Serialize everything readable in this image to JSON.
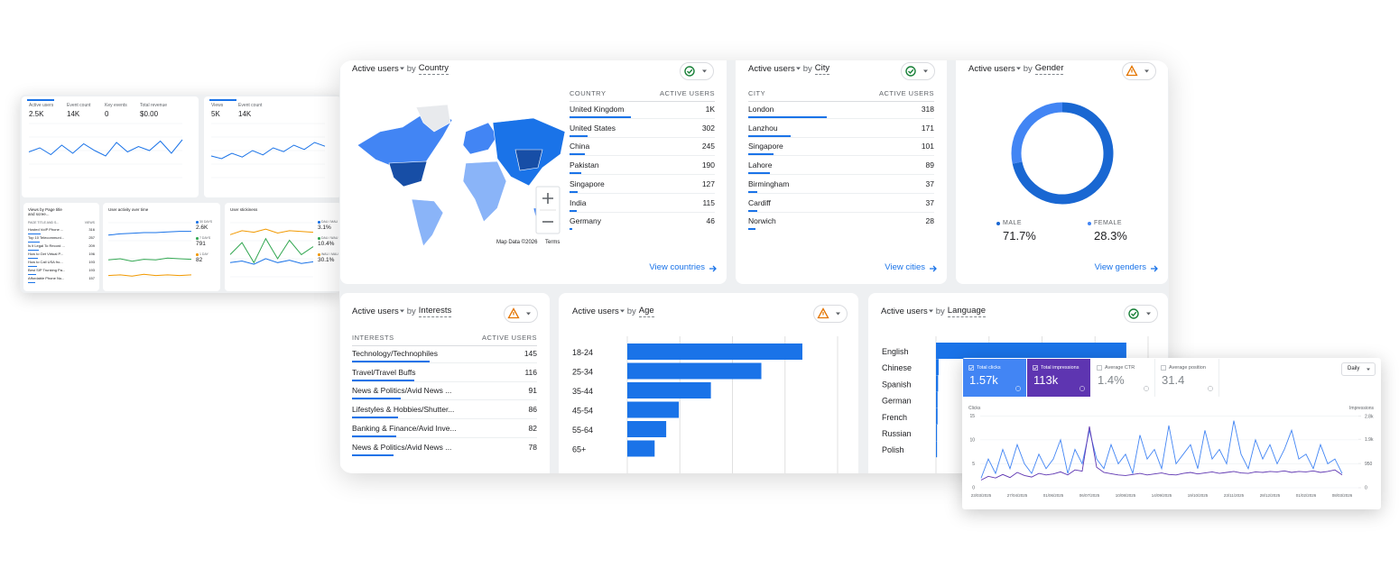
{
  "left": {
    "overview": {
      "metrics": [
        {
          "label": "Active users",
          "value": "2.5K"
        },
        {
          "label": "Event count",
          "value": "14K"
        },
        {
          "label": "Key events",
          "value": "0"
        },
        {
          "label": "Total revenue",
          "value": "$0.00"
        }
      ],
      "ylim": [
        0,
        200
      ],
      "trend": [
        95,
        110,
        85,
        120,
        90,
        125,
        100,
        80,
        130,
        95,
        115,
        100,
        135,
        90,
        140
      ],
      "color": "#1a73e8"
    },
    "views": {
      "metrics": [
        {
          "label": "Views",
          "value": "5K"
        },
        {
          "label": "Event count",
          "value": "14K"
        }
      ],
      "ylim": [
        0,
        100
      ],
      "trend": [
        40,
        35,
        45,
        38,
        50,
        42,
        55,
        48,
        60,
        52,
        65,
        58
      ],
      "color": "#1a73e8"
    },
    "pages": {
      "title": "Views by Page title and scree...",
      "columns": [
        "PAGE TITLE AND S...",
        "VIEWS"
      ],
      "rows": [
        [
          "Hosted VoIP Phone ...",
          "316"
        ],
        [
          "Top 10 Telecommuni...",
          "257"
        ],
        [
          "Is it Legal To Record ...",
          "209"
        ],
        [
          "How to Get Virtual P...",
          "196"
        ],
        [
          "How to Call USA fro...",
          "193"
        ],
        [
          "Best SIP Trunking Pa...",
          "193"
        ],
        [
          "Affordable Phone Nu...",
          "157"
        ]
      ]
    },
    "activity": {
      "title": "User activity over time",
      "ylim": [
        0,
        90
      ],
      "series": [
        {
          "name": "30 DAYS",
          "value": "2.6K",
          "color": "#1a73e8",
          "values": [
            70,
            72,
            73,
            74,
            74,
            75,
            76,
            76
          ]
        },
        {
          "name": "7 DAYS",
          "value": "791",
          "color": "#34a853",
          "values": [
            30,
            32,
            28,
            31,
            30,
            33,
            32,
            31
          ]
        },
        {
          "name": "1 DAY",
          "value": "82",
          "color": "#f29900",
          "values": [
            5,
            6,
            4,
            7,
            5,
            6,
            5,
            6
          ]
        }
      ]
    },
    "stickiness": {
      "title": "User stickiness",
      "ylim": [
        0,
        70
      ],
      "series": [
        {
          "name": "DAU / MAU",
          "value": "3.1%",
          "color": "#1a73e8",
          "values": [
            20,
            22,
            18,
            25,
            20,
            23,
            19,
            21
          ]
        },
        {
          "name": "DAU / WAU",
          "value": "10.4%",
          "color": "#34a853",
          "values": [
            30,
            45,
            20,
            50,
            25,
            48,
            30,
            40
          ]
        },
        {
          "name": "WAU / MAU",
          "value": "30.1%",
          "color": "#f29900",
          "values": [
            55,
            60,
            58,
            62,
            57,
            60,
            59,
            58
          ]
        }
      ]
    }
  },
  "main": {
    "country": {
      "title": "Active users",
      "by": "by",
      "dimension": "Country",
      "columns": [
        "COUNTRY",
        "ACTIVE USERS"
      ],
      "rows": [
        {
          "name": "United Kingdom",
          "value": 1000,
          "value_label": "1K"
        },
        {
          "name": "United States",
          "value": 302
        },
        {
          "name": "China",
          "value": 245
        },
        {
          "name": "Pakistan",
          "value": 190
        },
        {
          "name": "Singapore",
          "value": 127
        },
        {
          "name": "India",
          "value": 115
        },
        {
          "name": "Germany",
          "value": 46
        }
      ],
      "map_credit": "Map Data ©2026",
      "terms": "Terms",
      "link": "View countries"
    },
    "city": {
      "title": "Active users",
      "by": "by",
      "dimension": "City",
      "columns": [
        "CITY",
        "ACTIVE USERS"
      ],
      "rows": [
        {
          "name": "London",
          "value": 318
        },
        {
          "name": "Lanzhou",
          "value": 171
        },
        {
          "name": "Singapore",
          "value": 101
        },
        {
          "name": "Lahore",
          "value": 89
        },
        {
          "name": "Birmingham",
          "value": 37
        },
        {
          "name": "Cardiff",
          "value": 37
        },
        {
          "name": "Norwich",
          "value": 28
        }
      ],
      "link": "View cities"
    },
    "gender": {
      "title": "Active users",
      "by": "by",
      "dimension": "Gender",
      "segments": [
        {
          "name": "MALE",
          "value": 71.7,
          "value_label": "71.7%",
          "color": "#1967d2"
        },
        {
          "name": "FEMALE",
          "value": 28.3,
          "value_label": "28.3%",
          "color": "#4285f4"
        }
      ],
      "link": "View genders"
    },
    "interests": {
      "title": "Active users",
      "by": "by",
      "dimension": "Interests",
      "columns": [
        "INTERESTS",
        "ACTIVE USERS"
      ],
      "rows": [
        {
          "name": "Technology/Technophiles",
          "value": 145
        },
        {
          "name": "Travel/Travel Buffs",
          "value": 116
        },
        {
          "name": "News & Politics/Avid News ...",
          "value": 91
        },
        {
          "name": "Lifestyles & Hobbies/Shutter...",
          "value": 86
        },
        {
          "name": "Banking & Finance/Avid Inve...",
          "value": 82
        },
        {
          "name": "News & Politics/Avid News ...",
          "value": 78
        }
      ]
    },
    "age": {
      "title": "Active users",
      "by": "by",
      "dimension": "Age",
      "type": "bar",
      "categories": [
        "18-24",
        "25-34",
        "35-44",
        "45-54",
        "55-64",
        "65+"
      ],
      "values": [
        333,
        255,
        159,
        98,
        74,
        52
      ],
      "color": "#1a73e8",
      "xlim": [
        0,
        400
      ],
      "xticks": [
        0,
        100,
        200,
        300,
        400
      ],
      "grid": true
    },
    "language": {
      "title": "Active users",
      "by": "by",
      "dimension": "Language",
      "type": "bar",
      "categories": [
        "English",
        "Chinese",
        "Spanish",
        "German",
        "French",
        "Russian",
        "Polish"
      ],
      "values": [
        359,
        5,
        4,
        3,
        3,
        2,
        2
      ],
      "color": "#1a73e8",
      "xlim": [
        0,
        400
      ],
      "xticks": [
        0,
        100,
        200,
        300,
        400
      ],
      "grid": true
    }
  },
  "search": {
    "metrics": [
      {
        "name": "Total clicks",
        "value": "1.57k",
        "color": "#4285f4"
      },
      {
        "name": "Total impressions",
        "value": "113k",
        "color": "#5e35b1"
      },
      {
        "name": "Average CTR",
        "value": "1.4%"
      },
      {
        "name": "Average position",
        "value": "31.4"
      }
    ],
    "period": "Daily",
    "chart_data": {
      "type": "line",
      "y_label": "Clicks",
      "y2_label": "Impressions",
      "categories": [
        "23/03/2025",
        null,
        null,
        null,
        null,
        "27/04/2025",
        null,
        null,
        null,
        null,
        "01/06/2025",
        null,
        null,
        null,
        null,
        "06/07/2025",
        null,
        null,
        null,
        null,
        "10/08/2025",
        null,
        null,
        null,
        null,
        "14/09/2025",
        null,
        null,
        null,
        null,
        "19/10/2025",
        null,
        null,
        null,
        null,
        "23/11/2025",
        null,
        null,
        null,
        null,
        "28/12/2025",
        null,
        null,
        null,
        null,
        "01/02/2026",
        null,
        null,
        null,
        null,
        "08/03/2026"
      ],
      "series": [
        {
          "name": "Total clicks",
          "color": "#4285f4",
          "values": [
            2,
            6,
            3,
            8,
            4,
            9,
            5,
            3,
            7,
            4,
            6,
            10,
            3,
            8,
            5,
            12,
            6,
            4,
            9,
            5,
            7,
            3,
            11,
            6,
            8,
            4,
            13,
            5,
            7,
            9,
            4,
            12,
            6,
            8,
            5,
            14,
            7,
            4,
            10,
            6,
            9,
            5,
            8,
            12,
            6,
            7,
            4,
            9,
            5,
            6,
            3
          ]
        },
        {
          "name": "Total impressions",
          "color": "#5e35b1",
          "axis": "y2",
          "values": [
            300,
            450,
            380,
            520,
            400,
            600,
            480,
            420,
            560,
            500,
            540,
            620,
            500,
            700,
            650,
            2400,
            800,
            600,
            550,
            500,
            480,
            520,
            560,
            500,
            540,
            580,
            520,
            500,
            560,
            600,
            540,
            580,
            620,
            560,
            600,
            640,
            580,
            560,
            620,
            600,
            640,
            620,
            660,
            600,
            640,
            620,
            660,
            600,
            640,
            700,
            500
          ]
        }
      ],
      "ylim": [
        0,
        16
      ],
      "yticks": [
        0,
        5,
        10,
        15
      ],
      "y2lim": [
        0,
        3000
      ],
      "y2ticks": [
        0,
        950,
        {
          "value": 1900,
          "label": "1.9k"
        },
        {
          "value": 2800,
          "label": "2.8k"
        }
      ],
      "grid": true
    }
  }
}
